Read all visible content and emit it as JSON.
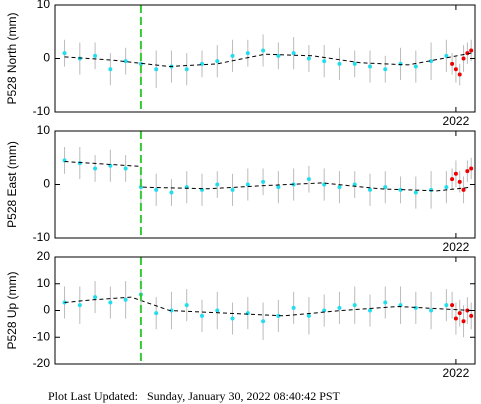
{
  "chart_data": [
    {
      "type": "scatter",
      "ylabel": "P528 North (mm)",
      "xlim": [
        2019.9,
        2022.1
      ],
      "xticks": [
        2022
      ],
      "ylim": [
        -10,
        10
      ],
      "yticks": [
        -10,
        0,
        10
      ],
      "vline": 2020.35,
      "vline_color": "#33cc33",
      "series": [
        {
          "mode": "markers",
          "color": "#22ddee",
          "x": [
            2019.95,
            2020.03,
            2020.11,
            2020.19,
            2020.27,
            2020.35,
            2020.43,
            2020.51,
            2020.59,
            2020.67,
            2020.75,
            2020.83,
            2020.91,
            2020.99,
            2021.07,
            2021.15,
            2021.23,
            2021.31,
            2021.39,
            2021.47,
            2021.55,
            2021.63,
            2021.71,
            2021.79,
            2021.87,
            2021.95
          ],
          "values": [
            1,
            0,
            0.5,
            -2,
            -0.5,
            -1,
            -2,
            -1.5,
            -2,
            -1,
            -0.5,
            0.5,
            1,
            1.5,
            0.5,
            1,
            0,
            -0.5,
            -1,
            -1,
            -1.5,
            -2,
            -1,
            -1.5,
            -0.5,
            0.5
          ],
          "errors": [
            2.5,
            3,
            2.5,
            3,
            2.5,
            3,
            3.5,
            3,
            3,
            2.5,
            3,
            3,
            2.5,
            3,
            2.5,
            3,
            2.5,
            3,
            3,
            2.5,
            3,
            2.5,
            3,
            3,
            3.5,
            3
          ]
        },
        {
          "mode": "markers",
          "color": "#ee0000",
          "x": [
            2021.98,
            2022.0,
            2022.02,
            2022.04,
            2022.06,
            2022.08
          ],
          "values": [
            -1,
            -2,
            -3,
            0,
            1,
            1.5
          ],
          "errors": [
            2,
            2.5,
            2,
            2.5,
            2,
            2
          ]
        },
        {
          "mode": "line",
          "color": "#000000",
          "x": [
            2019.95,
            2020.2,
            2020.5,
            2020.75,
            2021.0,
            2021.25,
            2021.5,
            2021.75,
            2022.08
          ],
          "values": [
            0.3,
            -0.3,
            -1.5,
            -1,
            0.8,
            0.5,
            -0.8,
            -1.2,
            1
          ]
        }
      ]
    },
    {
      "type": "scatter",
      "ylabel": "P528 East (mm)",
      "xlim": [
        2019.9,
        2022.1
      ],
      "xticks": [
        2022
      ],
      "ylim": [
        -10,
        10
      ],
      "yticks": [
        -10,
        0,
        10
      ],
      "vline": 2020.35,
      "vline_color": "#33cc33",
      "series": [
        {
          "mode": "markers",
          "color": "#22ddee",
          "x": [
            2019.95,
            2020.03,
            2020.11,
            2020.19,
            2020.27,
            2020.35,
            2020.43,
            2020.51,
            2020.59,
            2020.67,
            2020.75,
            2020.83,
            2020.91,
            2020.99,
            2021.07,
            2021.15,
            2021.23,
            2021.31,
            2021.39,
            2021.47,
            2021.55,
            2021.63,
            2021.71,
            2021.79,
            2021.87,
            2021.95
          ],
          "values": [
            4.5,
            4,
            3,
            3.5,
            3,
            -0.5,
            -1,
            -1.5,
            -0.5,
            -1,
            0,
            -1,
            0,
            0.5,
            -0.5,
            0,
            1,
            0,
            -0.5,
            0,
            -1,
            -0.5,
            -1,
            -1.5,
            -1,
            -0.5
          ],
          "errors": [
            2.5,
            3,
            2.5,
            3,
            2.5,
            3,
            3,
            2.5,
            3,
            3,
            2.5,
            3,
            3,
            2.5,
            3,
            3,
            2.5,
            3,
            3,
            2.5,
            3,
            3,
            2.5,
            3,
            3.5,
            3
          ]
        },
        {
          "mode": "markers",
          "color": "#ee0000",
          "x": [
            2021.98,
            2022.0,
            2022.02,
            2022.04,
            2022.06,
            2022.08
          ],
          "values": [
            1,
            2,
            0.5,
            -1,
            2.5,
            3
          ],
          "errors": [
            2,
            2.5,
            2,
            2.5,
            2,
            2
          ]
        },
        {
          "mode": "line",
          "color": "#000000",
          "x": [
            2019.95,
            2020.34,
            2020.35,
            2020.36,
            2020.7,
            2021.0,
            2021.3,
            2021.6,
            2021.9,
            2022.08
          ],
          "values": [
            4.3,
            3.4,
            null,
            -0.5,
            -0.8,
            -0.2,
            0.3,
            -0.8,
            -1.2,
            -0.5
          ]
        }
      ]
    },
    {
      "type": "scatter",
      "ylabel": "P528 Up (mm)",
      "xlim": [
        2019.9,
        2022.1
      ],
      "xticks": [
        2022
      ],
      "ylim": [
        -20,
        20
      ],
      "yticks": [
        -20,
        -10,
        0,
        10,
        20
      ],
      "vline": 2020.35,
      "vline_color": "#33cc33",
      "series": [
        {
          "mode": "markers",
          "color": "#22ddee",
          "x": [
            2019.95,
            2020.03,
            2020.11,
            2020.19,
            2020.27,
            2020.35,
            2020.43,
            2020.51,
            2020.59,
            2020.67,
            2020.75,
            2020.83,
            2020.91,
            2020.99,
            2021.07,
            2021.15,
            2021.23,
            2021.31,
            2021.39,
            2021.47,
            2021.55,
            2021.63,
            2021.71,
            2021.79,
            2021.87,
            2021.95
          ],
          "values": [
            3,
            2,
            5,
            3,
            4,
            6,
            -1,
            0,
            2,
            -2,
            0,
            -3,
            -1,
            -4,
            -2,
            1,
            -2,
            0,
            1,
            2,
            0,
            3,
            2,
            1,
            0,
            2
          ],
          "errors": [
            6,
            7,
            6,
            6,
            7,
            6,
            6,
            7,
            6,
            6,
            7,
            6,
            6,
            7,
            6,
            6,
            7,
            6,
            6,
            7,
            6,
            6,
            7,
            6,
            7,
            6
          ]
        },
        {
          "mode": "markers",
          "color": "#ee0000",
          "x": [
            2021.98,
            2022.0,
            2022.02,
            2022.04,
            2022.06,
            2022.08
          ],
          "values": [
            2,
            -3,
            -1,
            -4,
            0,
            -2
          ],
          "errors": [
            5,
            6,
            5,
            6,
            5,
            5
          ]
        },
        {
          "mode": "line",
          "color": "#000000",
          "x": [
            2019.95,
            2020.1,
            2020.3,
            2020.5,
            2020.8,
            2021.1,
            2021.4,
            2021.7,
            2022.08
          ],
          "values": [
            3,
            4,
            5,
            0,
            -1,
            -2,
            0,
            1.5,
            0
          ]
        }
      ]
    }
  ],
  "footer": "Plot Last Updated:   Sunday, January 30, 2022 08:40:42 PST"
}
